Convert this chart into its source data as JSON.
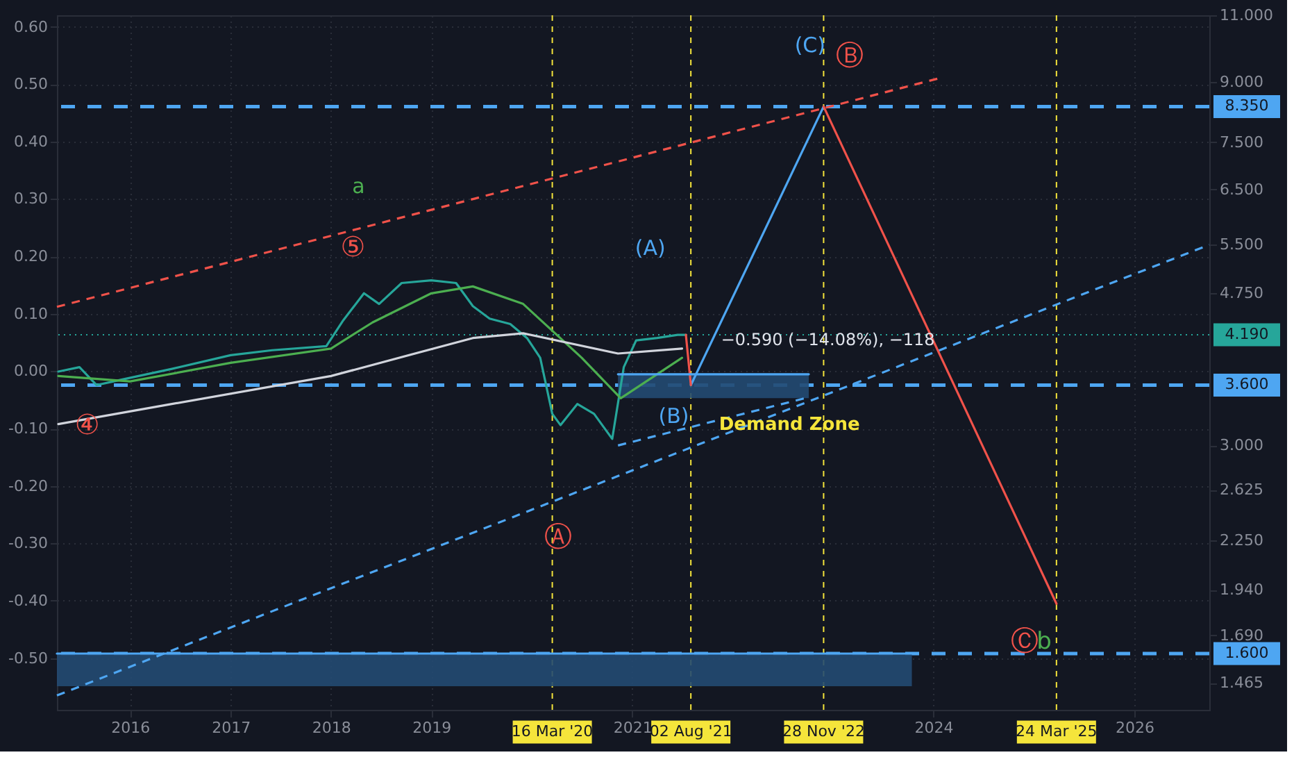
{
  "chart_data": {
    "type": "line",
    "xlim": [
      "2015-04-10",
      "2026-10-01"
    ],
    "xticks": [
      {
        "value": "2016-01-01",
        "label": "2016"
      },
      {
        "value": "2017-01-01",
        "label": "2017"
      },
      {
        "value": "2018-01-01",
        "label": "2018"
      },
      {
        "value": "2019-01-01",
        "label": "2019"
      },
      {
        "value": "2021-01-01",
        "label": "2021"
      },
      {
        "value": "2024-01-01",
        "label": "2024"
      },
      {
        "value": "2026-01-01",
        "label": "2026"
      }
    ],
    "ylim": [
      -0.59,
      0.62
    ],
    "yticks": [
      {
        "value": 0.6,
        "label": "0.60"
      },
      {
        "value": 0.5,
        "label": "0.50"
      },
      {
        "value": 0.4,
        "label": "0.40"
      },
      {
        "value": 0.3,
        "label": "0.30"
      },
      {
        "value": 0.2,
        "label": "0.20"
      },
      {
        "value": 0.1,
        "label": "0.10"
      },
      {
        "value": 0,
        "label": "0.00"
      },
      {
        "value": -0.1,
        "label": "-0.10"
      },
      {
        "value": -0.2,
        "label": "-0.20"
      },
      {
        "value": -0.3,
        "label": "-0.30"
      },
      {
        "value": -0.4,
        "label": "-0.40"
      },
      {
        "value": -0.5,
        "label": "-0.50"
      }
    ],
    "y2lim": [
      1.35,
      11.0
    ],
    "y2ticks": [
      {
        "value": 11,
        "label": "11.000"
      },
      {
        "value": 9,
        "label": "9.000"
      },
      {
        "value": 7.5,
        "label": "7.500"
      },
      {
        "value": 6.5,
        "label": "6.500"
      },
      {
        "value": 5.5,
        "label": "5.500"
      },
      {
        "value": 4.75,
        "label": "4.750"
      },
      {
        "value": 3,
        "label": "3.000"
      },
      {
        "value": 2.625,
        "label": "2.625"
      },
      {
        "value": 2.25,
        "label": "2.250"
      },
      {
        "value": 1.94,
        "label": "1.940"
      },
      {
        "value": 1.69,
        "label": "1.690"
      },
      {
        "value": 1.465,
        "label": "1.465"
      }
    ],
    "log": "y2",
    "grid": true,
    "marker": "none",
    "series": [
      {
        "axis": "y2",
        "color": "#26a69a",
        "x": [
          "2015-04-15",
          "2015-07-01",
          "2015-09-01",
          "2015-12-01",
          "2016-06-01",
          "2017-01-01",
          "2017-06-01",
          "2017-12-15",
          "2018-02-15",
          "2018-05-01",
          "2018-06-25",
          "2018-09-15",
          "2019-01-01",
          "2019-04-01",
          "2019-06-01",
          "2019-08-01",
          "2019-10-15",
          "2019-12-15",
          "2020-02-01",
          "2020-03-16",
          "2020-04-15",
          "2020-06-15",
          "2020-08-15",
          "2020-10-20",
          "2020-12-01",
          "2021-01-15",
          "2021-04-01",
          "2021-06-15",
          "2021-07-15"
        ],
        "values": [
          3.75,
          3.8,
          3.6,
          3.66,
          3.78,
          3.94,
          4.0,
          4.05,
          4.38,
          4.75,
          4.6,
          4.9,
          4.94,
          4.9,
          4.57,
          4.4,
          4.33,
          4.15,
          3.91,
          3.3,
          3.19,
          3.4,
          3.3,
          3.06,
          3.8,
          4.12,
          4.15,
          4.19,
          4.19
        ]
      },
      {
        "axis": "y2",
        "color": "#4caf50",
        "x": [
          "2015-04-15",
          "2016-01-01",
          "2017-01-01",
          "2018-01-01",
          "2018-06-01",
          "2019-01-01",
          "2019-06-01",
          "2019-12-01",
          "2020-07-01",
          "2020-11-20",
          "2021-07-01"
        ],
        "values": [
          3.7,
          3.64,
          3.85,
          4.02,
          4.35,
          4.75,
          4.85,
          4.6,
          3.91,
          3.46,
          3.91
        ]
      },
      {
        "axis": "y2",
        "color": "#d1d4dc",
        "x": [
          "2015-04-15",
          "2016-06-01",
          "2018-01-01",
          "2019-06-01",
          "2019-12-01",
          "2020-11-10",
          "2021-07-01"
        ],
        "values": [
          3.2,
          3.4,
          3.7,
          4.15,
          4.21,
          3.96,
          4.02
        ]
      },
      {
        "axis": "y2",
        "color": "#f0524a",
        "line_style": "dashed",
        "x": [
          "2015-04-10",
          "2024-01-30"
        ],
        "values": [
          4.56,
          9.11
        ]
      },
      {
        "axis": "y2",
        "color": "#4ea6f2",
        "line_style": "dashed",
        "x": [
          "2015-04-10",
          "2026-10-01"
        ],
        "values": [
          1.41,
          5.5
        ]
      },
      {
        "axis": "y2",
        "color": "#4ea6f2",
        "line_style": "dashed",
        "x": [
          "2020-11-10",
          "2022-10-05"
        ],
        "values": [
          3.0,
          3.47
        ]
      },
      {
        "axis": "y2",
        "color": "#4ea6f2",
        "x": [
          "2021-08-02",
          "2022-11-28"
        ],
        "values": [
          3.6,
          8.35
        ]
      },
      {
        "axis": "y2",
        "color": "#f0524a",
        "x": [
          "2021-07-15",
          "2021-08-02"
        ],
        "values": [
          4.19,
          3.6
        ]
      },
      {
        "axis": "y2",
        "color": "#f0524a",
        "x": [
          "2022-11-28",
          "2025-03-24"
        ],
        "values": [
          8.35,
          1.86
        ]
      },
      {
        "axis": "y2",
        "color": "#4ea6f2",
        "x": [
          "2020-11-10",
          "2021-10-20",
          "2022-10-05"
        ],
        "values": [
          3.72,
          3.72,
          3.72
        ],
        "lower": [
          3.46,
          3.46,
          3.46
        ],
        "upper": [
          3.72,
          3.72,
          3.72
        ]
      },
      {
        "axis": "y2",
        "color": "#4ea6f2",
        "x": [
          "2015-04-10",
          "2019-07-15",
          "2023-10-15"
        ],
        "values": [
          1.6,
          1.6,
          1.6
        ],
        "lower": [
          1.45,
          1.45,
          1.45
        ],
        "upper": [
          1.6,
          1.6,
          1.6
        ]
      }
    ],
    "ref_lines": [
      {
        "axis": "x",
        "value": "2020-03-16",
        "label": "16 Mar '20",
        "color": "#f5e53b",
        "line_style": "dashed"
      },
      {
        "axis": "x",
        "value": "2021-08-02",
        "label": "02 Aug '21",
        "color": "#f5e53b",
        "line_style": "dashed"
      },
      {
        "axis": "x",
        "value": "2022-11-28",
        "label": "28 Nov '22",
        "color": "#f5e53b",
        "line_style": "dashed"
      },
      {
        "axis": "x",
        "value": "2025-03-24",
        "label": "24 Mar '25",
        "color": "#f5e53b",
        "line_style": "dashed"
      },
      {
        "axis": "y2",
        "value": 8.35,
        "label": "8.350",
        "color": "#4ea6f2",
        "line_style": "dashed"
      },
      {
        "axis": "y2",
        "value": 3.6,
        "label": "3.600",
        "color": "#4ea6f2",
        "line_style": "dashed"
      },
      {
        "axis": "y2",
        "value": 1.6,
        "label": "1.600",
        "color": "#4ea6f2",
        "line_style": "dashed"
      },
      {
        "axis": "y2",
        "value": 4.19,
        "label": "4.190",
        "color": "#26a69a",
        "line_style": "dotted"
      }
    ],
    "annotations": [
      "a",
      "⑤",
      "④",
      "Ⓐ",
      "(A)",
      "(B)",
      "Demand Zone",
      "(C)",
      "Ⓑ",
      "Ⓒ",
      "b",
      "−0.590 (−14.08%), −118"
    ]
  }
}
